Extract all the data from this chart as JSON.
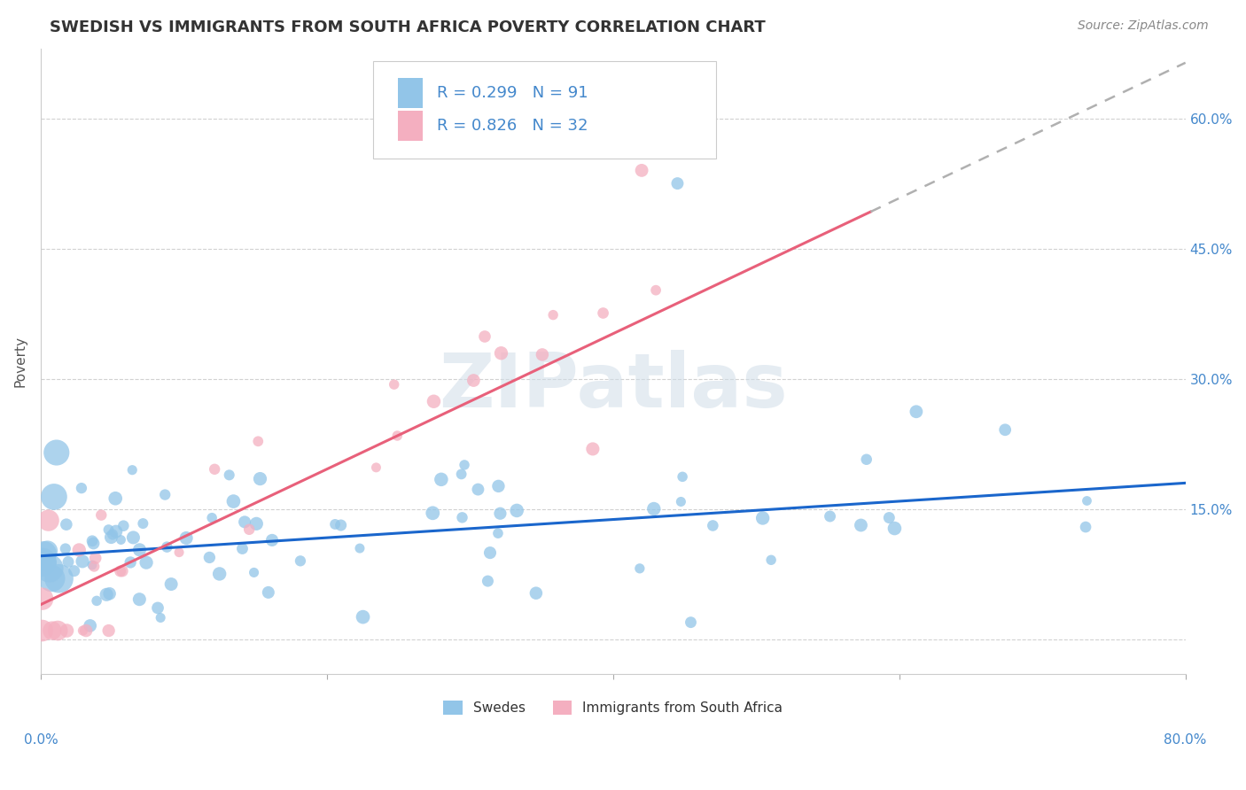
{
  "title": "SWEDISH VS IMMIGRANTS FROM SOUTH AFRICA POVERTY CORRELATION CHART",
  "source": "Source: ZipAtlas.com",
  "ylabel": "Poverty",
  "ytick_labels": [
    "",
    "15.0%",
    "30.0%",
    "45.0%",
    "60.0%"
  ],
  "ytick_values": [
    0.0,
    0.15,
    0.3,
    0.45,
    0.6
  ],
  "xlim": [
    0.0,
    0.8
  ],
  "ylim": [
    -0.04,
    0.68
  ],
  "blue_color": "#92c5e8",
  "pink_color": "#f4afc0",
  "trend_blue_color": "#1a66cc",
  "trend_pink_color": "#e8607a",
  "trend_dashed_color": "#b0b0b0",
  "background_color": "#ffffff",
  "grid_color": "#cccccc",
  "legend_blue_r": "R = 0.299",
  "legend_blue_n": "N = 91",
  "legend_pink_r": "R = 0.826",
  "legend_pink_n": "N = 32",
  "legend_text_color": "#4488cc",
  "watermark": "ZIPatlas",
  "title_fontsize": 13,
  "axis_label_fontsize": 11,
  "tick_fontsize": 11,
  "legend_fontsize": 13,
  "source_fontsize": 10,
  "blue_trend_start_x": 0.0,
  "blue_trend_end_x": 0.8,
  "blue_trend_intercept": 0.096,
  "blue_trend_slope": 0.105,
  "pink_trend_start_x": 0.0,
  "pink_trend_solid_end_x": 0.58,
  "pink_trend_dashed_end_x": 0.8,
  "pink_trend_intercept": 0.04,
  "pink_trend_slope": 0.78
}
